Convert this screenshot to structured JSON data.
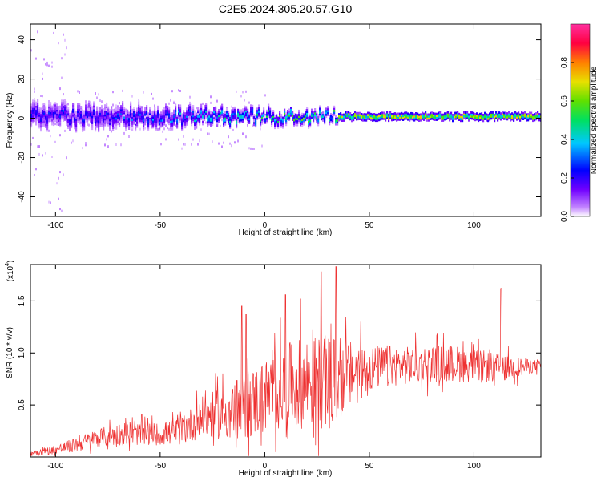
{
  "figure": {
    "title": "C2E5.2024.305.20.57.G10"
  },
  "chart_data": [
    {
      "type": "heatmap",
      "panel": "spectrogram",
      "xlabel": "Height of straight line (km)",
      "ylabel": "Frequency (Hz)",
      "xlim": [
        -112,
        132
      ],
      "ylim": [
        -50,
        48
      ],
      "xticks": [
        -100,
        -50,
        0,
        50,
        100
      ],
      "yticks": [
        -40,
        -20,
        0,
        20,
        40
      ],
      "grid": false,
      "colorbar": {
        "label": "Normalized spectral amplitude",
        "range": [
          0,
          1
        ],
        "ticks": [
          "0.0",
          "0.2",
          "0.4",
          "0.6",
          "0.8"
        ],
        "colormap": [
          "#ffffff",
          "#c080ff",
          "#7000ff",
          "#0000ff",
          "#00c8ff",
          "#00e060",
          "#60e000",
          "#e8e000",
          "#ff8000",
          "#ff0040",
          "#ff30a0"
        ]
      },
      "band": {
        "centre_hz": 1,
        "x": [
          -112,
          -100,
          -80,
          -60,
          -40,
          -20,
          0,
          20,
          30,
          40,
          60,
          80,
          100,
          120,
          132
        ],
        "half_width_hz": [
          9,
          8,
          8,
          7,
          6,
          5,
          4,
          4,
          3,
          2.5,
          2.5,
          2.5,
          2.5,
          2.5,
          2.5
        ],
        "peak_amplitude": [
          0.3,
          0.3,
          0.32,
          0.35,
          0.38,
          0.45,
          0.5,
          0.55,
          0.5,
          0.8,
          0.85,
          0.85,
          0.85,
          0.85,
          0.85
        ]
      }
    },
    {
      "type": "line",
      "panel": "snr",
      "xlabel": "Height of straight line (km)",
      "ylabel": "SNR (10 * v/v)",
      "scale_label": "(x10",
      "scale_exponent": "4",
      "xlim": [
        -112,
        132
      ],
      "ylim": [
        0,
        1.85
      ],
      "xticks": [
        -100,
        -50,
        0,
        50,
        100
      ],
      "yticks": [
        "0.5",
        "1.0",
        "1.5"
      ],
      "ytick_values": [
        0.5,
        1.0,
        1.5
      ],
      "grid": false,
      "series": [
        {
          "color": "#ee3030",
          "envelope_x": [
            -112,
            -100,
            -90,
            -80,
            -70,
            -60,
            -50,
            -40,
            -30,
            -20,
            -10,
            0,
            10,
            20,
            30,
            40,
            50,
            60,
            70,
            80,
            90,
            100,
            110,
            120,
            132
          ],
          "envelope_mean": [
            0.04,
            0.07,
            0.12,
            0.18,
            0.22,
            0.22,
            0.22,
            0.25,
            0.38,
            0.42,
            0.48,
            0.58,
            0.68,
            0.72,
            0.72,
            0.78,
            0.85,
            0.88,
            0.88,
            0.9,
            0.9,
            0.88,
            0.86,
            0.86,
            0.88
          ],
          "envelope_spread": [
            0.03,
            0.05,
            0.08,
            0.1,
            0.12,
            0.12,
            0.12,
            0.15,
            0.22,
            0.28,
            0.35,
            0.4,
            0.45,
            0.5,
            0.5,
            0.38,
            0.25,
            0.22,
            0.2,
            0.2,
            0.2,
            0.18,
            0.16,
            0.12,
            0.05
          ],
          "notable_peaks": [
            [
              34,
              1.83
            ],
            [
              27,
              1.78
            ],
            [
              10,
              1.56
            ],
            [
              -11,
              1.45
            ],
            [
              113,
              1.62
            ],
            [
              -9,
              1.37
            ],
            [
              17,
              1.52
            ]
          ]
        }
      ]
    }
  ]
}
